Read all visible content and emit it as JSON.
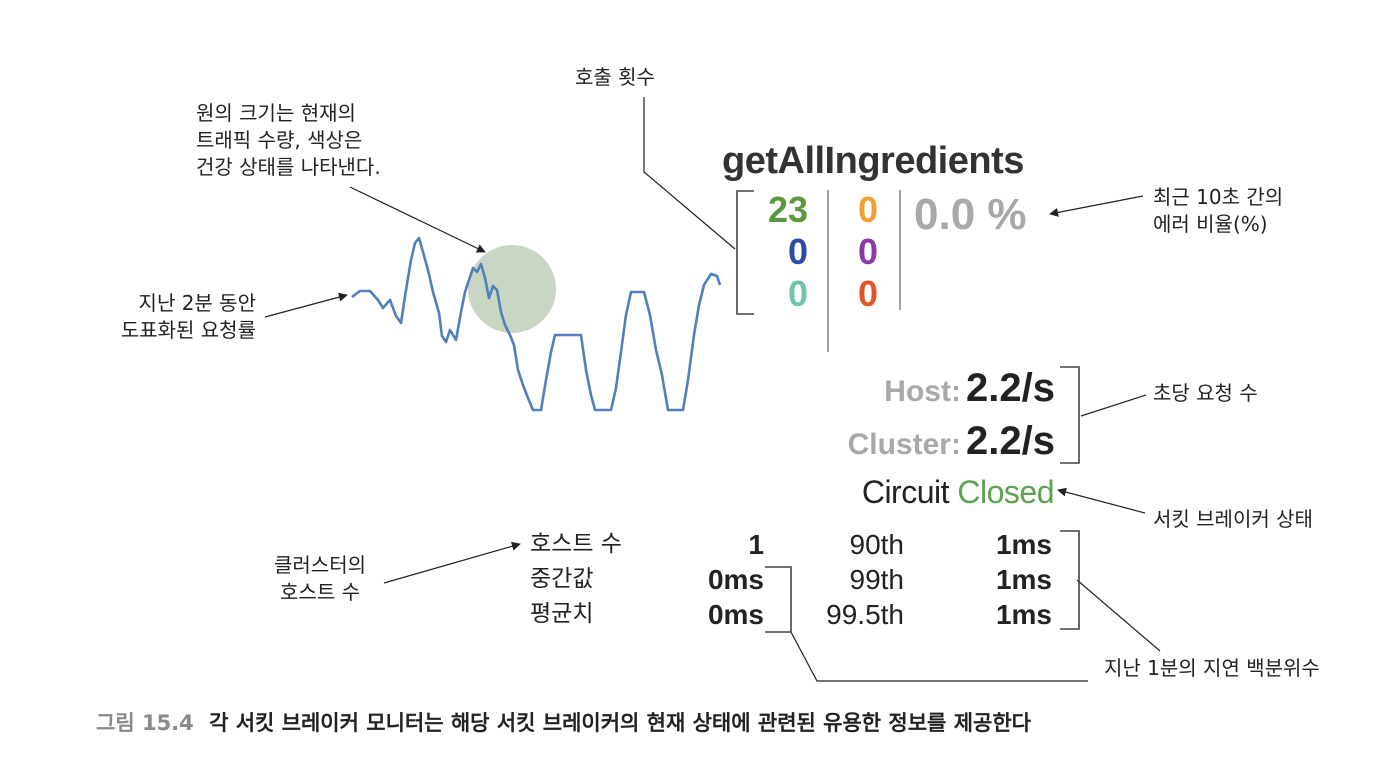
{
  "annotations": {
    "call_counts": "호출 횟수",
    "circle_desc": [
      "원의 크기는 현재의",
      "트래픽 수량, 색상은",
      "건강 상태를 나타낸다."
    ],
    "graph_desc": [
      "지난 2분 동안",
      "도표화된 요청률"
    ],
    "error_rate": [
      "최근 10초 간의",
      "에러 비율(%)"
    ],
    "rps": "초당 요청 수",
    "breaker_state": "서킷 브레이커 상태",
    "host_count": [
      "클러스터의",
      "호스트 수"
    ],
    "latency": "지난 1분의 지연 백분위수"
  },
  "monitor": {
    "name": "getAllIngredients",
    "counts": {
      "col1": [
        "23",
        "0",
        "0"
      ],
      "col2": [
        "0",
        "0",
        "0"
      ]
    },
    "error_pct": "0.0 %",
    "host_label": "Host:",
    "host_rate": "2.2/s",
    "cluster_label": "Cluster:",
    "cluster_rate": "2.2/s",
    "circuit_label": "Circuit",
    "circuit_state": "Closed",
    "stats_labels": [
      "호스트 수",
      "중간값",
      "평균치"
    ],
    "stats_values": [
      "1",
      "0ms",
      "0ms"
    ],
    "percentiles": [
      "90th",
      "99th",
      "99.5th"
    ],
    "percentile_values": [
      "1ms",
      "1ms",
      "1ms"
    ]
  },
  "colors": {
    "success": "#5a9a3c",
    "short_circuited": "#2a4ca8",
    "bad_request": "#6fc6a6",
    "timeout": "#f0a030",
    "rejected": "#8a3aa8",
    "failure": "#e0552a",
    "graph_line": "#4f7fbd",
    "circle": "#c9d6c4",
    "closed": "#5ba34d"
  },
  "caption": {
    "number": "그림 15.4",
    "text": "각 서킷 브레이커 모니터는 해당 서킷 브레이커의 현재 상태에 관련된 유용한 정보를 제공한다"
  }
}
